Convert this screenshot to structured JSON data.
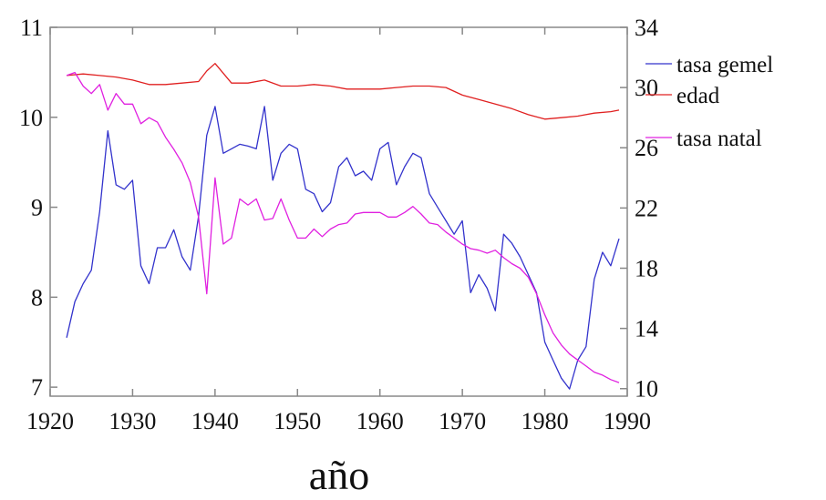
{
  "chart_data": {
    "type": "line",
    "title": "",
    "xlabel": "año",
    "ylabel": "",
    "y2label": "",
    "grid": false,
    "legend_position": "top-right",
    "xlim": [
      1920,
      1990
    ],
    "ylim": [
      6.9,
      11
    ],
    "y2lim": [
      9.5,
      34
    ],
    "x_ticks": [
      1920,
      1930,
      1940,
      1950,
      1960,
      1970,
      1980,
      1990
    ],
    "y_ticks": [
      7,
      8,
      9,
      10,
      11
    ],
    "y2_ticks": [
      10,
      14,
      18,
      22,
      26,
      30,
      34
    ],
    "series": [
      {
        "name": "tasa gemel",
        "color": "#3333cc",
        "axis": "left",
        "x": [
          1922,
          1923,
          1924,
          1925,
          1926,
          1927,
          1928,
          1929,
          1930,
          1931,
          1932,
          1933,
          1934,
          1935,
          1936,
          1937,
          1938,
          1939,
          1940,
          1941,
          1942,
          1943,
          1944,
          1945,
          1946,
          1947,
          1948,
          1949,
          1950,
          1951,
          1952,
          1953,
          1954,
          1955,
          1956,
          1957,
          1958,
          1959,
          1960,
          1961,
          1962,
          1963,
          1964,
          1965,
          1966,
          1967,
          1968,
          1969,
          1970,
          1971,
          1972,
          1973,
          1974,
          1975,
          1976,
          1977,
          1978,
          1979,
          1980,
          1981,
          1982,
          1983,
          1984,
          1985,
          1986,
          1987,
          1988,
          1989
        ],
        "y": [
          7.55,
          7.95,
          8.15,
          8.3,
          8.95,
          9.85,
          9.25,
          9.2,
          9.3,
          8.35,
          8.15,
          8.55,
          8.55,
          8.75,
          8.45,
          8.3,
          8.9,
          9.8,
          10.12,
          9.6,
          9.65,
          9.7,
          9.68,
          9.65,
          10.12,
          9.3,
          9.6,
          9.7,
          9.65,
          9.2,
          9.15,
          8.95,
          9.05,
          9.45,
          9.55,
          9.35,
          9.4,
          9.3,
          9.65,
          9.72,
          9.25,
          9.45,
          9.6,
          9.55,
          9.15,
          9.0,
          8.85,
          8.7,
          8.85,
          8.05,
          8.25,
          8.1,
          7.85,
          8.7,
          8.6,
          8.45,
          8.25,
          8.05,
          7.5,
          7.3,
          7.1,
          6.98,
          7.3,
          7.45,
          8.2,
          8.5,
          8.35,
          8.65
        ]
      },
      {
        "name": "edad",
        "color": "#e02020",
        "axis": "right",
        "x": [
          1922,
          1924,
          1926,
          1928,
          1930,
          1932,
          1934,
          1936,
          1938,
          1939,
          1940,
          1942,
          1944,
          1946,
          1948,
          1950,
          1952,
          1954,
          1956,
          1958,
          1960,
          1962,
          1964,
          1966,
          1968,
          1970,
          1972,
          1974,
          1976,
          1978,
          1980,
          1982,
          1984,
          1986,
          1988,
          1989
        ],
        "y": [
          30.8,
          30.9,
          30.8,
          30.7,
          30.5,
          30.2,
          30.2,
          30.3,
          30.4,
          31.1,
          31.6,
          30.3,
          30.3,
          30.5,
          30.1,
          30.1,
          30.2,
          30.1,
          29.9,
          29.9,
          29.9,
          30.0,
          30.1,
          30.1,
          30.0,
          29.5,
          29.2,
          28.9,
          28.6,
          28.2,
          27.9,
          28.0,
          28.1,
          28.3,
          28.4,
          28.5
        ]
      },
      {
        "name": "tasa natal",
        "color": "#e020e0",
        "axis": "right",
        "x": [
          1922,
          1923,
          1924,
          1925,
          1926,
          1927,
          1928,
          1929,
          1930,
          1931,
          1932,
          1933,
          1934,
          1935,
          1936,
          1937,
          1938,
          1939,
          1940,
          1941,
          1942,
          1943,
          1944,
          1945,
          1946,
          1947,
          1948,
          1949,
          1950,
          1951,
          1952,
          1953,
          1954,
          1955,
          1956,
          1957,
          1958,
          1959,
          1960,
          1961,
          1962,
          1963,
          1964,
          1965,
          1966,
          1967,
          1968,
          1969,
          1970,
          1971,
          1972,
          1973,
          1974,
          1975,
          1976,
          1977,
          1978,
          1979,
          1980,
          1981,
          1982,
          1983,
          1984,
          1985,
          1986,
          1987,
          1988,
          1989
        ],
        "y": [
          30.8,
          31.0,
          30.1,
          29.6,
          30.2,
          28.5,
          29.6,
          28.9,
          28.9,
          27.6,
          28.0,
          27.7,
          26.7,
          25.9,
          25.0,
          23.7,
          21.4,
          16.3,
          24.0,
          19.6,
          20.0,
          22.6,
          22.2,
          22.6,
          21.2,
          21.3,
          22.6,
          21.2,
          20.0,
          20.0,
          20.6,
          20.1,
          20.6,
          20.9,
          21.0,
          21.6,
          21.7,
          21.7,
          21.7,
          21.4,
          21.4,
          21.7,
          22.1,
          21.6,
          21.0,
          20.9,
          20.4,
          20.0,
          19.6,
          19.3,
          19.2,
          19.0,
          19.2,
          18.7,
          18.3,
          18.0,
          17.4,
          16.3,
          14.9,
          13.7,
          12.9,
          12.3,
          11.9,
          11.5,
          11.1,
          10.9,
          10.6,
          10.4
        ]
      }
    ]
  }
}
